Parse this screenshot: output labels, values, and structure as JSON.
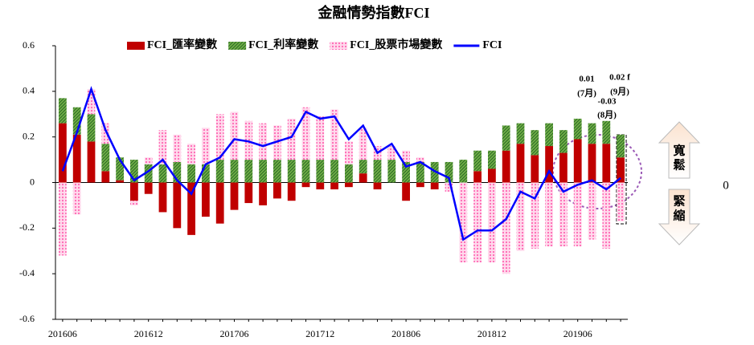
{
  "chart_data": {
    "type": "stacked_bar_line",
    "title": "金融情勢指數FCI",
    "categories": [
      "201606",
      null,
      null,
      null,
      null,
      null,
      "201612",
      null,
      null,
      null,
      null,
      null,
      "201706",
      null,
      null,
      null,
      null,
      null,
      "201712",
      null,
      null,
      null,
      null,
      null,
      "201806",
      null,
      null,
      null,
      null,
      null,
      "201812",
      null,
      null,
      null,
      null,
      null,
      "201906",
      null,
      null,
      null
    ],
    "series": [
      {
        "name": "FCI_匯率變數",
        "color": "#c00000",
        "pattern": "solid",
        "values": [
          0.26,
          0.21,
          0.18,
          0.05,
          0.01,
          -0.08,
          -0.05,
          -0.13,
          -0.2,
          -0.23,
          -0.15,
          -0.18,
          -0.12,
          -0.09,
          -0.1,
          -0.07,
          -0.08,
          -0.02,
          -0.03,
          -0.03,
          -0.02,
          0.04,
          -0.03,
          0,
          -0.08,
          -0.02,
          -0.03,
          0,
          0,
          0.05,
          0.06,
          0.14,
          0.17,
          0.12,
          0.16,
          0.13,
          0.19,
          0.17,
          0.17,
          0.11
        ]
      },
      {
        "name": "FCI_利率變數",
        "color": "#70ad47",
        "pattern": "hatch",
        "values": [
          0.11,
          0.12,
          0.12,
          0.12,
          0.1,
          0.1,
          0.08,
          0.08,
          0.09,
          0.08,
          0.08,
          0.1,
          0.1,
          0.1,
          0.1,
          0.1,
          0.1,
          0.1,
          0.1,
          0.1,
          0.08,
          0.06,
          0.1,
          0.1,
          0.09,
          0.09,
          0.09,
          0.09,
          0.1,
          0.09,
          0.08,
          0.11,
          0.09,
          0.11,
          0.1,
          0.1,
          0.09,
          0.09,
          0.1,
          0.1
        ]
      },
      {
        "name": "FCI_股票市場變數",
        "color": "#ff66b3",
        "pattern": "dots",
        "values": [
          -0.32,
          -0.14,
          0.11,
          0.09,
          0,
          -0.02,
          0.03,
          0.15,
          0.12,
          0.09,
          0.16,
          0.2,
          0.21,
          0.17,
          0.16,
          0.15,
          0.18,
          0.23,
          0.19,
          0.22,
          0.1,
          0.14,
          0.06,
          0.06,
          0.05,
          0.02,
          0,
          -0.04,
          -0.35,
          -0.35,
          -0.35,
          -0.4,
          -0.3,
          -0.29,
          -0.28,
          -0.28,
          -0.28,
          -0.25,
          -0.29,
          -0.17
        ]
      },
      {
        "name": "FCI",
        "color": "#0000ff",
        "kind": "line",
        "values": [
          0.05,
          0.22,
          0.41,
          0.23,
          0.1,
          0.01,
          0.05,
          0.1,
          0.01,
          -0.05,
          0.08,
          0.11,
          0.19,
          0.18,
          0.16,
          0.18,
          0.2,
          0.31,
          0.28,
          0.29,
          0.19,
          0.25,
          0.13,
          0.17,
          0.07,
          0.09,
          0.05,
          0.02,
          -0.25,
          -0.21,
          -0.21,
          -0.16,
          -0.04,
          -0.07,
          0.05,
          -0.04,
          -0.01,
          0.01,
          -0.03,
          0.02
        ]
      }
    ],
    "ylim": [
      -0.6,
      0.6
    ],
    "yticks": [
      -0.6,
      -0.4,
      -0.2,
      0,
      0.2,
      0.4,
      0.6
    ],
    "annotations": [
      "0.01",
      "(7月)",
      "-0.03",
      "(8月)",
      "0.02 f",
      "(9月)",
      "寬",
      "鬆",
      "緊",
      "縮",
      "0"
    ]
  }
}
